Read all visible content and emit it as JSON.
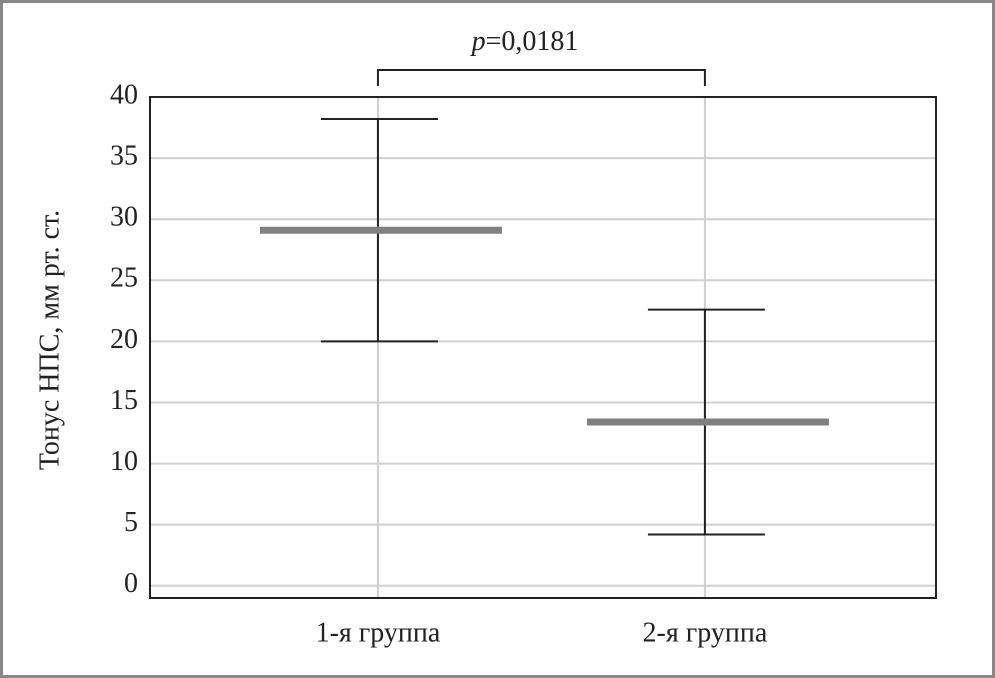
{
  "chart_data": {
    "type": "errorbar",
    "ylabel": "Тонус НПС, мм рт. ст.",
    "categories": [
      "1-я группа",
      "2-я группа"
    ],
    "series": [
      {
        "color": "#808080",
        "values": [
          29.1,
          13.4
        ],
        "errors": [
          9.1,
          9.2
        ]
      }
    ],
    "annotation": {
      "variable": "p",
      "text": "=0,0181"
    },
    "ylim": [
      -1,
      40
    ],
    "yticks": [
      0,
      5,
      10,
      15,
      20,
      25,
      30,
      35,
      40
    ],
    "grid": true
  }
}
